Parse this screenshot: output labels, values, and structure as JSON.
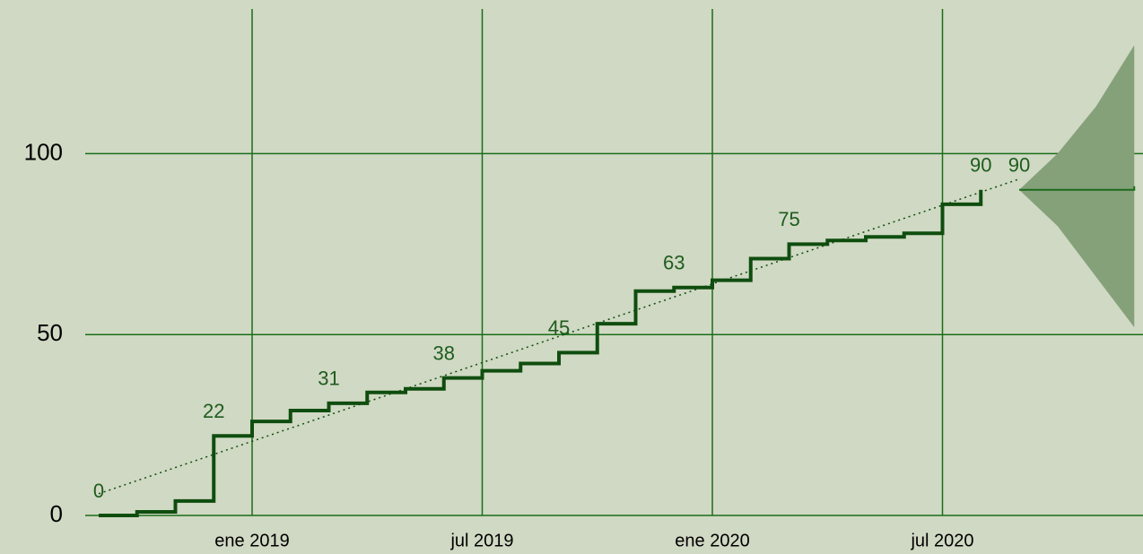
{
  "chart_data": {
    "type": "step",
    "x": [
      "2018-09",
      "2018-10",
      "2018-11",
      "2018-12",
      "2019-01",
      "2019-02",
      "2019-03",
      "2019-04",
      "2019-05",
      "2019-06",
      "2019-07",
      "2019-08",
      "2019-09",
      "2019-10",
      "2019-11",
      "2019-12",
      "2020-01",
      "2020-02",
      "2020-03",
      "2020-04",
      "2020-05",
      "2020-06",
      "2020-07",
      "2020-08"
    ],
    "values": [
      0,
      1,
      4,
      22,
      26,
      29,
      31,
      34,
      35,
      38,
      40,
      42,
      45,
      53,
      62,
      63,
      65,
      71,
      75,
      76,
      77,
      78,
      86,
      90
    ],
    "color": "#0f4d0f",
    "trend": {
      "x": [
        "2018-09",
        "2020-09"
      ],
      "values": [
        6,
        93
      ],
      "color": "#0f4d0f"
    },
    "forecast": {
      "x": [
        "2020-09",
        "2020-10",
        "2020-11",
        "2020-12"
      ],
      "values": [
        90,
        90,
        90,
        91
      ],
      "upper": [
        90,
        100,
        113,
        130
      ],
      "lower": [
        90,
        80,
        66,
        52
      ],
      "color": "#1d6b1d",
      "band_color": "#85a17a"
    },
    "annotations": [
      {
        "x": "2018-09",
        "value": 0
      },
      {
        "x": "2018-12",
        "value": 22
      },
      {
        "x": "2019-03",
        "value": 31
      },
      {
        "x": "2019-06",
        "value": 38
      },
      {
        "x": "2019-09",
        "value": 45
      },
      {
        "x": "2019-12",
        "value": 63
      },
      {
        "x": "2020-03",
        "value": 75
      },
      {
        "x": "2020-08",
        "value": 90
      },
      {
        "x": "2020-09",
        "value": 90
      }
    ],
    "xlim": [
      "2018-08",
      "2020-12"
    ],
    "xticks": [
      {
        "value": "2019-01",
        "label": "ene 2019"
      },
      {
        "value": "2019-07",
        "label": "jul 2019"
      },
      {
        "value": "2020-01",
        "label": "ene 2020"
      },
      {
        "value": "2020-07",
        "label": "jul 2020"
      }
    ],
    "ylim": [
      0,
      140
    ],
    "yticks": [
      0,
      50,
      100
    ],
    "grid": true,
    "grid_color": "#1a6e1a"
  }
}
